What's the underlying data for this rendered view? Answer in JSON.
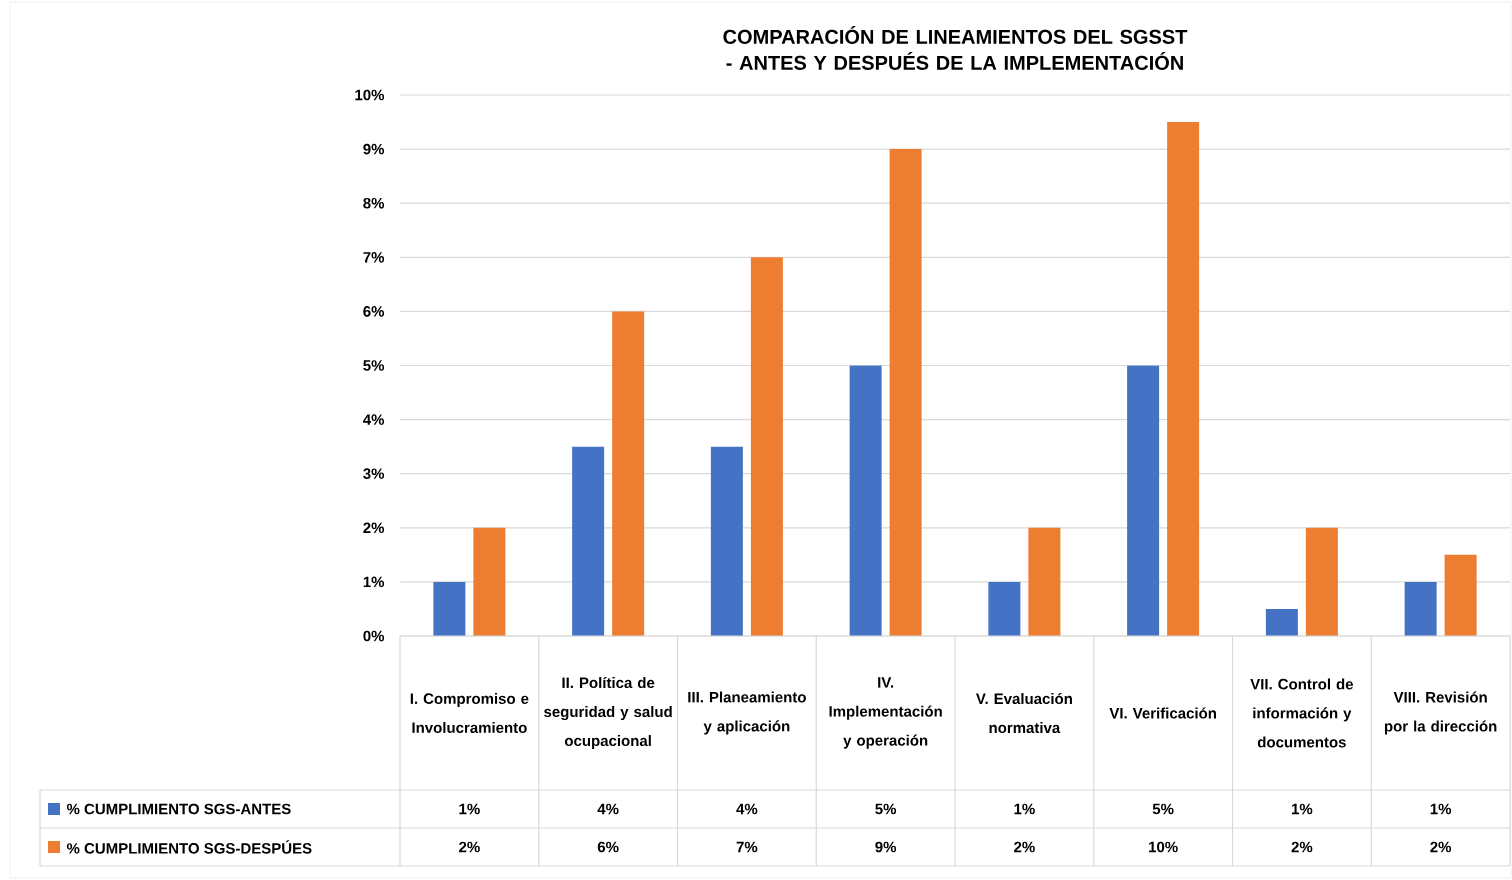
{
  "chart_data": {
    "type": "bar",
    "title": "COMPARACIÓN DE LINEAMIENTOS DEL SGSST - ANTES Y DESPUÉS DE LA IMPLEMENTACIÓN",
    "categories": [
      "I. Compromiso e Involucramiento",
      "II. Política de seguridad y salud ocupacional",
      "III. Planeamiento y aplicación",
      "IV. Implementación y operación",
      "V. Evaluación normativa",
      "VI. Verificación",
      "VII. Control de información y documentos",
      "VIII. Revisión por la dirección"
    ],
    "series": [
      {
        "name": "% CUMPLIMIENTO SGS-ANTES",
        "color": "#4472c4",
        "values": [
          1,
          3.5,
          3.5,
          5,
          1,
          5,
          0.5,
          1
        ],
        "value_labels": [
          "1%",
          "4%",
          "4%",
          "5%",
          "1%",
          "5%",
          "1%",
          "1%"
        ]
      },
      {
        "name": "% CUMPLIMIENTO SGS-DESPÚES",
        "color": "#ed7d31",
        "values": [
          2,
          6,
          7,
          9,
          2,
          9.5,
          2,
          1.5
        ],
        "value_labels": [
          "2%",
          "6%",
          "7%",
          "9%",
          "2%",
          "10%",
          "2%",
          "2%"
        ]
      }
    ],
    "ylim": [
      0,
      10
    ],
    "yticks": [
      {
        "value": 0,
        "label": "0%"
      },
      {
        "value": 1,
        "label": "1%"
      },
      {
        "value": 2,
        "label": "2%"
      },
      {
        "value": 3,
        "label": "3%"
      },
      {
        "value": 4,
        "label": "4%"
      },
      {
        "value": 5,
        "label": "5%"
      },
      {
        "value": 6,
        "label": "6%"
      },
      {
        "value": 7,
        "label": "7%"
      },
      {
        "value": 8,
        "label": "8%"
      },
      {
        "value": 9,
        "label": "9%"
      },
      {
        "value": 10,
        "label": "10%"
      }
    ],
    "grid": "y",
    "legend": "bottom"
  }
}
